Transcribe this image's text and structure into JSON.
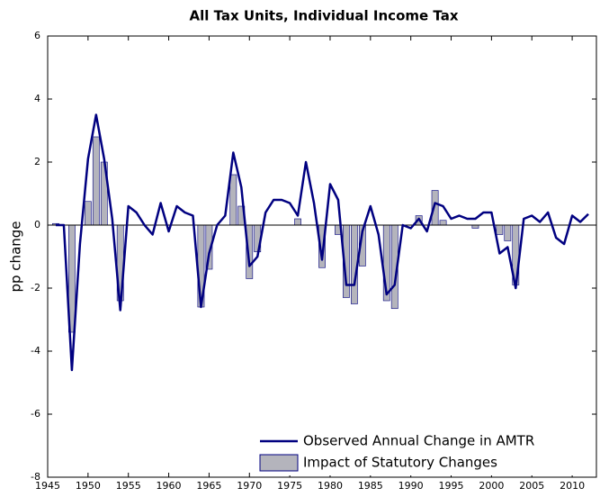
{
  "chart_data": {
    "type": "bar",
    "title": "All Tax Units, Individual Income Tax",
    "ylabel": "pp change",
    "x": [
      1946,
      1947,
      1948,
      1949,
      1950,
      1951,
      1952,
      1953,
      1954,
      1955,
      1956,
      1957,
      1958,
      1959,
      1960,
      1961,
      1962,
      1963,
      1964,
      1965,
      1966,
      1967,
      1968,
      1969,
      1970,
      1971,
      1972,
      1973,
      1974,
      1975,
      1976,
      1977,
      1978,
      1979,
      1980,
      1981,
      1982,
      1983,
      1984,
      1985,
      1986,
      1987,
      1988,
      1989,
      1990,
      1991,
      1992,
      1993,
      1994,
      1995,
      1996,
      1997,
      1998,
      1999,
      2000,
      2001,
      2002,
      2003,
      2004,
      2005,
      2006,
      2007,
      2008,
      2009,
      2010,
      2011,
      2012
    ],
    "series": [
      {
        "name": "Impact of Statutory Changes",
        "type": "bar",
        "color": "#b4b4bc",
        "edgecolor": "#000080",
        "values": [
          0.05,
          0,
          -3.4,
          0,
          0.75,
          2.8,
          2.0,
          0,
          -2.4,
          0,
          0,
          0,
          0,
          0,
          0,
          0,
          0,
          0,
          -2.6,
          -1.4,
          0,
          0,
          1.6,
          0.6,
          -1.7,
          -0.85,
          0,
          0,
          0,
          0,
          0.2,
          0,
          0,
          -1.35,
          0,
          -0.3,
          -2.3,
          -2.5,
          -1.3,
          0,
          0,
          -2.4,
          -2.65,
          0,
          0,
          0.3,
          0,
          1.1,
          0.15,
          0,
          0,
          0,
          -0.1,
          0,
          0,
          -0.3,
          -0.5,
          -1.9,
          0,
          0,
          0,
          0,
          0,
          0,
          0,
          0,
          0
        ]
      },
      {
        "name": "Observed Annual Change in AMTR",
        "type": "line",
        "color": "#000080",
        "values": [
          0,
          0,
          -4.6,
          -0.6,
          2.1,
          3.5,
          2.1,
          0.2,
          -2.7,
          0.6,
          0.4,
          0,
          -0.3,
          0.7,
          -0.2,
          0.6,
          0.4,
          0.3,
          -2.6,
          -0.9,
          0,
          0.3,
          2.3,
          1.2,
          -1.3,
          -1.0,
          0.4,
          0.8,
          0.8,
          0.7,
          0.3,
          2.0,
          0.7,
          -1.1,
          1.3,
          0.8,
          -1.9,
          -1.9,
          -0.2,
          0.6,
          -0.3,
          -2.2,
          -1.9,
          0,
          -0.1,
          0.2,
          -0.2,
          0.7,
          0.6,
          0.2,
          0.3,
          0.2,
          0.2,
          0.4,
          0.4,
          -0.9,
          -0.7,
          -2.0,
          0.2,
          0.3,
          0.1,
          0.4,
          -0.4,
          -0.6,
          0.3,
          0.1,
          0.35
        ]
      }
    ],
    "xlim": [
      1945,
      2013
    ],
    "xticks": [
      1945,
      1950,
      1955,
      1960,
      1965,
      1970,
      1975,
      1980,
      1985,
      1990,
      1995,
      2000,
      2005,
      2010
    ],
    "ylim": [
      -8,
      6
    ],
    "yticks": [
      -8,
      -6,
      -4,
      -2,
      0,
      2,
      4,
      6
    ],
    "legend": "lower right"
  }
}
